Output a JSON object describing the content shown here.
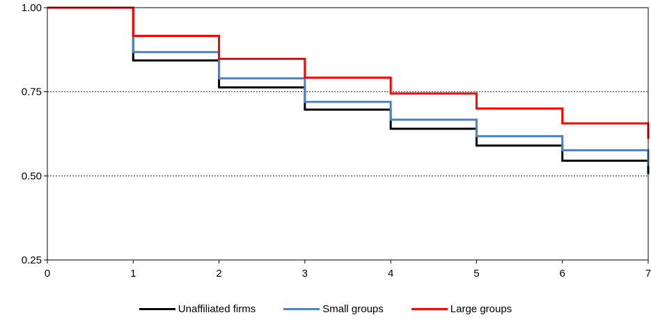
{
  "chart_data": {
    "type": "line",
    "step": true,
    "title": "",
    "xlabel": "",
    "ylabel": "",
    "xlim": [
      0,
      7
    ],
    "ylim": [
      0.25,
      1.0
    ],
    "x_ticks": [
      "0",
      "1",
      "2",
      "3",
      "4",
      "5",
      "6",
      "7"
    ],
    "y_ticks": [
      "0.25",
      "0.50",
      "0.75",
      "1.00"
    ],
    "grid": "horizontal-dashed",
    "legend_position": "bottom",
    "x": [
      0,
      1,
      2,
      3,
      4,
      5,
      6,
      7
    ],
    "series": [
      {
        "name": "Unaffiliated firms",
        "color": "#000000",
        "values": [
          1.0,
          0.843,
          0.763,
          0.697,
          0.64,
          0.59,
          0.545,
          0.505
        ]
      },
      {
        "name": "Small groups",
        "color": "#4F81BD",
        "values": [
          1.0,
          0.868,
          0.79,
          0.72,
          0.667,
          0.618,
          0.576,
          0.53
        ]
      },
      {
        "name": "Large groups",
        "color": "#FF0000",
        "values": [
          1.0,
          0.916,
          0.848,
          0.792,
          0.745,
          0.7,
          0.656,
          0.61
        ]
      }
    ]
  }
}
